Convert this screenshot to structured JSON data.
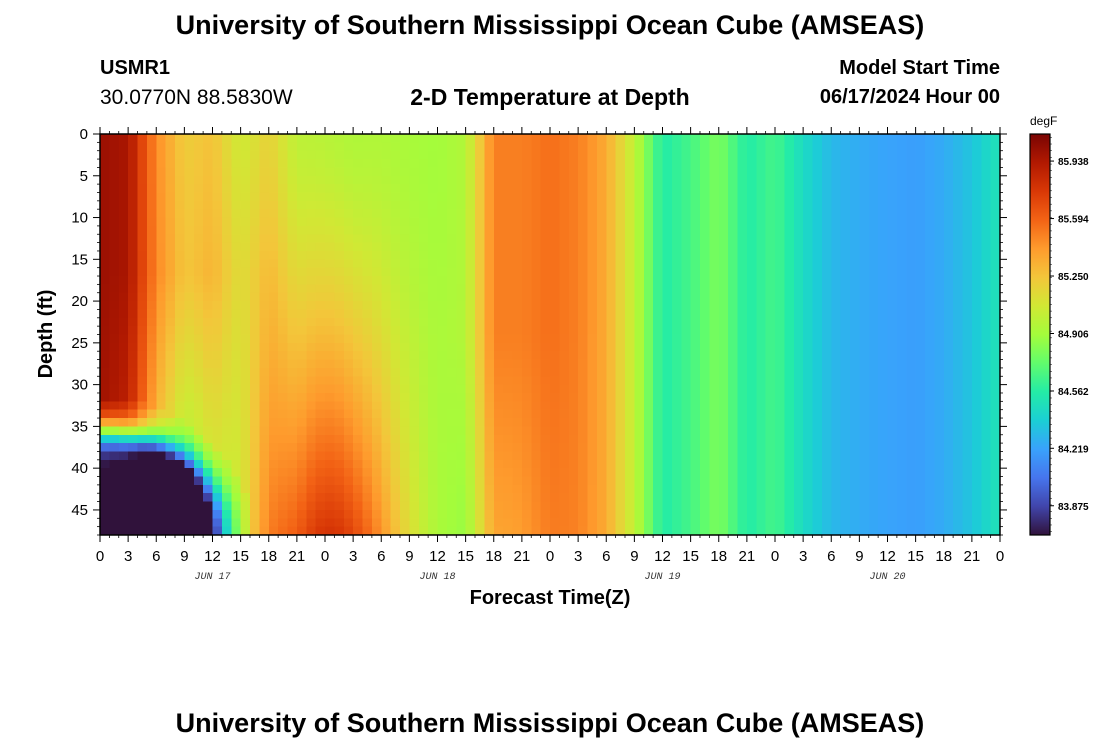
{
  "header": {
    "title": "University of Southern Mississippi Ocean Cube (AMSEAS)",
    "station_id": "USMR1",
    "station_coords": "30.0770N  88.5830W",
    "plot_title": "2-D Temperature at Depth",
    "start_label": "Model Start Time",
    "start_value": "06/17/2024 Hour 00"
  },
  "footer": {
    "title": "University of Southern Mississippi Ocean Cube (AMSEAS)"
  },
  "chart_data": {
    "type": "heatmap",
    "title": "2-D Temperature at Depth",
    "xlabel": "Forecast Time(Z)",
    "ylabel": "Depth (ft)",
    "x_unit": "hours since model start",
    "xlim": [
      0,
      96
    ],
    "ylim": [
      0,
      48
    ],
    "y_inverted": true,
    "x_ticks": [
      0,
      3,
      6,
      9,
      12,
      15,
      18,
      21,
      24,
      27,
      30,
      33,
      36,
      39,
      42,
      45,
      48,
      51,
      54,
      57,
      60,
      63,
      66,
      69,
      72,
      75,
      78,
      81,
      84,
      87,
      90,
      93,
      96
    ],
    "x_tick_labels": [
      "0",
      "3",
      "6",
      "9",
      "12",
      "15",
      "18",
      "21",
      "0",
      "3",
      "6",
      "9",
      "12",
      "15",
      "18",
      "21",
      "0",
      "3",
      "6",
      "9",
      "12",
      "15",
      "18",
      "21",
      "0",
      "3",
      "6",
      "9",
      "12",
      "15",
      "18",
      "21",
      "0"
    ],
    "day_labels": [
      {
        "text": "JUN 17",
        "hour": 12
      },
      {
        "text": "JUN 18",
        "hour": 36
      },
      {
        "text": "JUN 19",
        "hour": 60
      },
      {
        "text": "JUN 20",
        "hour": 84
      }
    ],
    "y_ticks": [
      0,
      5,
      10,
      15,
      20,
      25,
      30,
      35,
      40,
      45
    ],
    "colorbar": {
      "unit": "degF",
      "min": 83.7,
      "max": 86.1,
      "tick_values": [
        85.938,
        85.594,
        85.25,
        84.906,
        84.562,
        84.219,
        83.875
      ],
      "colormap": [
        "#30123b",
        "#4145ab",
        "#4675ed",
        "#39a2fc",
        "#1bcfd4",
        "#24eca6",
        "#61fc6c",
        "#a4fc3b",
        "#d1e834",
        "#f3c63a",
        "#fe9b2d",
        "#f36315",
        "#d93806",
        "#b11901",
        "#7a0403"
      ]
    },
    "surface_temperature_degF": {
      "hours": [
        0,
        3,
        6,
        9,
        12,
        15,
        18,
        21,
        24,
        27,
        30,
        33,
        36,
        39,
        42,
        45,
        48,
        51,
        54,
        57,
        60,
        63,
        66,
        69,
        72,
        75,
        78,
        81,
        84,
        87,
        90,
        93,
        96
      ],
      "values": [
        86.0,
        85.95,
        85.5,
        85.3,
        85.4,
        85.2,
        85.3,
        85.05,
        85.0,
        84.95,
        84.95,
        84.92,
        84.9,
        84.95,
        85.5,
        85.5,
        85.55,
        85.5,
        85.35,
        85.0,
        84.55,
        84.65,
        84.8,
        84.55,
        84.65,
        84.45,
        84.3,
        84.25,
        84.22,
        84.2,
        84.25,
        84.35,
        84.5
      ]
    },
    "notes": [
      "Warm core (~86.0 degF) between 0 and 30 ft during hours 0-6",
      "Cold pocket (~83.8 degF) at 40-48 ft during hours 0-14",
      "Warm band (~85.8 degF) at 30-48 ft during hours 21-27",
      "Cool band (~84.2 degF) at all depths during hours 75-90"
    ]
  }
}
